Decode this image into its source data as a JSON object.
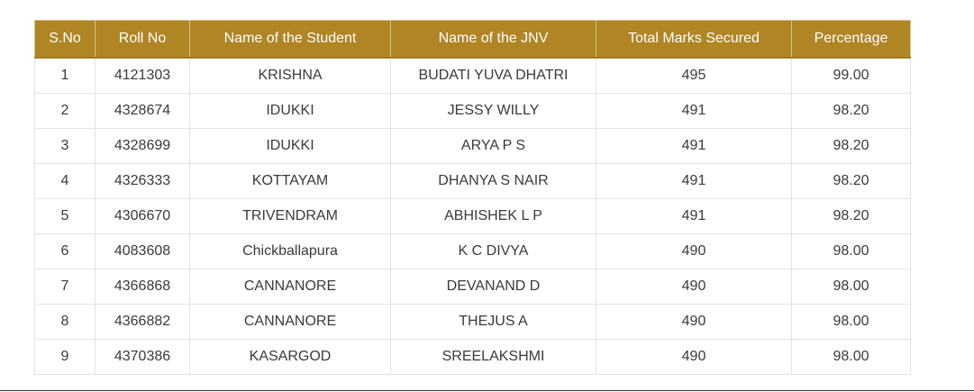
{
  "table": {
    "headers": [
      "S.No",
      "Roll No",
      "Name of the Student",
      "Name of the JNV",
      "Total Marks Secured",
      "Percentage"
    ],
    "rows": [
      [
        "1",
        "4121303",
        "KRISHNA",
        "BUDATI YUVA DHATRI",
        "495",
        "99.00"
      ],
      [
        "2",
        "4328674",
        "IDUKKI",
        "JESSY WILLY",
        "491",
        "98.20"
      ],
      [
        "3",
        "4328699",
        "IDUKKI",
        "ARYA P S",
        "491",
        "98.20"
      ],
      [
        "4",
        "4326333",
        "KOTTAYAM",
        "DHANYA S NAIR",
        "491",
        "98.20"
      ],
      [
        "5",
        "4306670",
        "TRIVENDRAM",
        "ABHISHEK L P",
        "491",
        "98.20"
      ],
      [
        "6",
        "4083608",
        "Chickballapura",
        "K C DIVYA",
        "490",
        "98.00"
      ],
      [
        "7",
        "4366868",
        "CANNANORE",
        "DEVANAND D",
        "490",
        "98.00"
      ],
      [
        "8",
        "4366882",
        "CANNANORE",
        "THEJUS A",
        "490",
        "98.00"
      ],
      [
        "9",
        "4370386",
        "KASARGOD",
        "SREELAKSHMI",
        "490",
        "98.00"
      ]
    ]
  },
  "colors": {
    "header_background": "#b08524",
    "header_text": "#ffffff",
    "cell_text": "#3a3a3a",
    "grid": "#e3e3e3"
  }
}
